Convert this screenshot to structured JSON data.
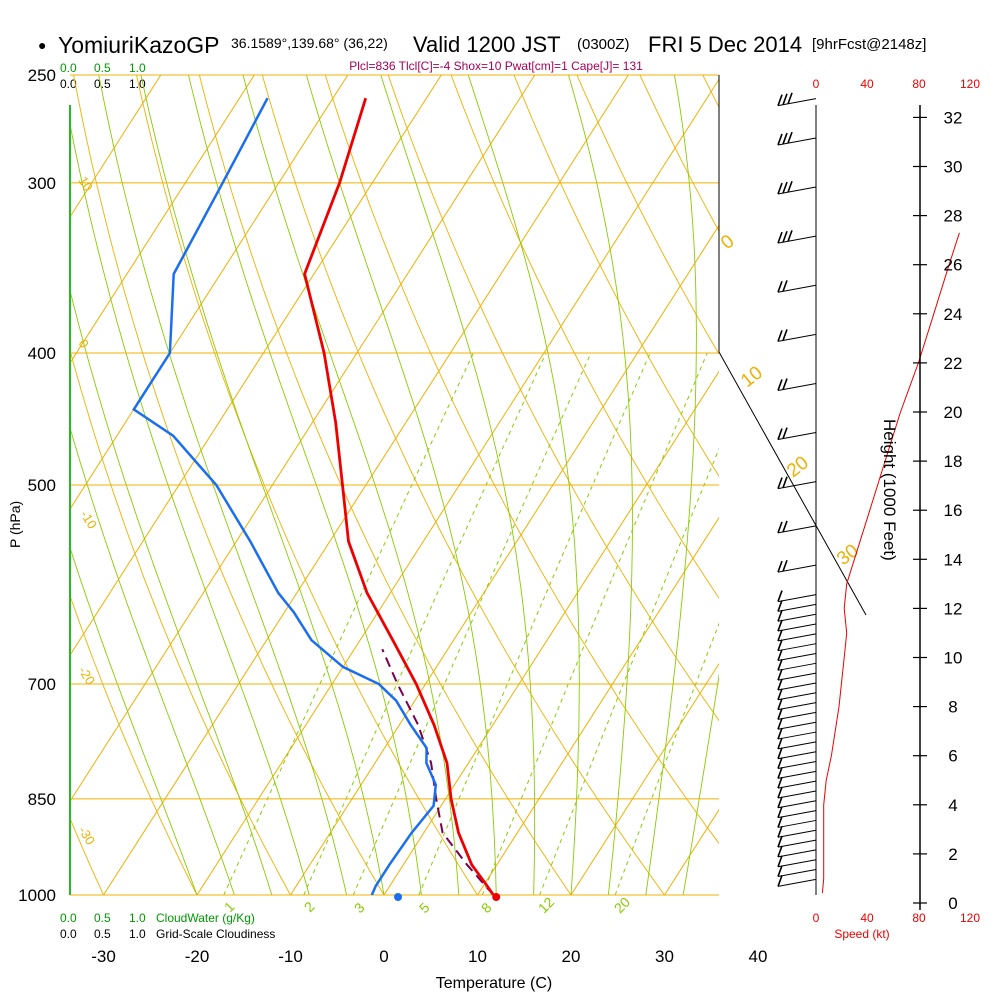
{
  "header": {
    "bullet": "●",
    "station": "YomiuriKazoGP",
    "location": "36.1589°,139.68° (36,22)",
    "valid_main": "Valid 1200 JST",
    "valid_utc": "(0300Z)",
    "date": "FRI 5 Dec 2014",
    "forecast": "[9hrFcst@2148z]",
    "indices": "Plcl=836 Tlcl[C]=-4 Shox=10 Pwat[cm]=1 Cape[J]= 131"
  },
  "colors": {
    "temperature": "#ee0000",
    "dewpoint": "#1a6ef0",
    "parcel": "#7a0050",
    "isotherm_isobar": "#f0b000",
    "moist_adiabat": "#88cc00",
    "mixing_ratio": "#88cc00",
    "cloud_water": "#009900",
    "wind_speed": "#ee0000",
    "indices_text": "#aa0055"
  },
  "top_scales": {
    "cloud_water": [
      "0.0",
      "0.5",
      "1.0"
    ],
    "cloudiness": [
      "0.0",
      "0.5",
      "1.0"
    ],
    "wind_speed": [
      "0",
      "40",
      "80",
      "120"
    ]
  },
  "bottom_scales": {
    "cloud_water": [
      "0.0",
      "0.5",
      "1.0"
    ],
    "cloud_water_label": "CloudWater (g/Kg)",
    "cloudiness": [
      "0.0",
      "0.5",
      "1.0"
    ],
    "cloudiness_label": "Grid-Scale Cloudiness",
    "wind_speed": [
      "0",
      "40",
      "80",
      "120"
    ],
    "wind_speed_label": "Speed (kt)"
  },
  "chart_data": {
    "type": "skew-t",
    "xlabel": "Temperature (C)",
    "ylabel": "P (hPa)",
    "right_label": "Height (1000 Feet)",
    "pressure_ticks": [
      250,
      300,
      400,
      500,
      700,
      850,
      1000
    ],
    "temperature_ticks": [
      -30,
      -20,
      -10,
      0,
      10,
      20,
      30,
      40
    ],
    "height_ticks_kft": [
      0,
      2,
      4,
      6,
      8,
      10,
      12,
      14,
      16,
      18,
      20,
      22,
      24,
      26,
      28,
      30,
      32
    ],
    "isotherm_labels": [
      "10",
      "0",
      "-10",
      "-20",
      "-30"
    ],
    "moist_adiabat_labels": [
      "0",
      "10",
      "20",
      "30"
    ],
    "mixing_ratio_labels": [
      "1",
      "2",
      "3",
      "5",
      "8",
      "12",
      "20"
    ],
    "temperature_profile": [
      {
        "p": 1000,
        "t": 11.7
      },
      {
        "p": 980,
        "t": 10.0
      },
      {
        "p": 950,
        "t": 7.3
      },
      {
        "p": 900,
        "t": 3.7
      },
      {
        "p": 850,
        "t": 0.6
      },
      {
        "p": 800,
        "t": -2.3
      },
      {
        "p": 750,
        "t": -6.3
      },
      {
        "p": 700,
        "t": -11.0
      },
      {
        "p": 650,
        "t": -16.5
      },
      {
        "p": 600,
        "t": -22.5
      },
      {
        "p": 550,
        "t": -28.0
      },
      {
        "p": 500,
        "t": -32.5
      },
      {
        "p": 450,
        "t": -37.5
      },
      {
        "p": 400,
        "t": -43.5
      },
      {
        "p": 350,
        "t": -51.0
      },
      {
        "p": 300,
        "t": -53.5
      },
      {
        "p": 260,
        "t": -56.5
      }
    ],
    "dewpoint_profile": [
      {
        "p": 1000,
        "t": -1.3
      },
      {
        "p": 985,
        "t": -1.5
      },
      {
        "p": 950,
        "t": -1.5
      },
      {
        "p": 900,
        "t": -1.3
      },
      {
        "p": 860,
        "t": -0.8
      },
      {
        "p": 830,
        "t": -2.0
      },
      {
        "p": 800,
        "t": -4.5
      },
      {
        "p": 780,
        "t": -5.5
      },
      {
        "p": 750,
        "t": -8.8
      },
      {
        "p": 720,
        "t": -12.0
      },
      {
        "p": 700,
        "t": -15.0
      },
      {
        "p": 680,
        "t": -20.0
      },
      {
        "p": 650,
        "t": -25.2
      },
      {
        "p": 620,
        "t": -29.0
      },
      {
        "p": 600,
        "t": -32.0
      },
      {
        "p": 550,
        "t": -38.5
      },
      {
        "p": 500,
        "t": -46.0
      },
      {
        "p": 460,
        "t": -54.0
      },
      {
        "p": 440,
        "t": -60.0
      },
      {
        "p": 400,
        "t": -60.0
      },
      {
        "p": 350,
        "t": -65.0
      },
      {
        "p": 300,
        "t": -66.0
      },
      {
        "p": 260,
        "t": -67.0
      }
    ],
    "parcel_profile": [
      {
        "p": 1000,
        "t": 11.7
      },
      {
        "p": 950,
        "t": 6.8
      },
      {
        "p": 900,
        "t": 2.0
      },
      {
        "p": 850,
        "t": -1.0
      },
      {
        "p": 800,
        "t": -4.0
      },
      {
        "p": 750,
        "t": -8.0
      },
      {
        "p": 700,
        "t": -13.0
      },
      {
        "p": 660,
        "t": -17.0
      }
    ],
    "surface_temperature": 12.0,
    "surface_dewpoint": 1.5,
    "wind_barb_levels_kft": [
      0.8,
      1.2,
      1.6,
      2.0,
      2.4,
      2.8,
      3.2,
      3.6,
      4.0,
      4.4,
      4.8,
      5.2,
      5.6,
      6.0,
      6.4,
      6.8,
      7.2,
      7.6,
      8.0,
      8.4,
      8.8,
      9.2,
      9.6,
      10.0,
      10.4,
      10.8,
      11.2,
      11.6,
      12.0,
      12.4,
      13.6,
      15.2,
      17.0,
      19.0,
      21.0,
      23.0,
      25.0,
      27.0,
      29.0,
      31.0,
      32.6
    ],
    "wind_speed_profile_kt": [
      {
        "h": 0.4,
        "v": 5
      },
      {
        "h": 1.0,
        "v": 6
      },
      {
        "h": 2.0,
        "v": 6
      },
      {
        "h": 4.0,
        "v": 6
      },
      {
        "h": 5.0,
        "v": 8
      },
      {
        "h": 6.0,
        "v": 12
      },
      {
        "h": 8.0,
        "v": 18
      },
      {
        "h": 10.0,
        "v": 22
      },
      {
        "h": 11.0,
        "v": 24
      },
      {
        "h": 12.0,
        "v": 22
      },
      {
        "h": 13.0,
        "v": 24
      },
      {
        "h": 14.0,
        "v": 30
      },
      {
        "h": 16.0,
        "v": 42
      },
      {
        "h": 18.0,
        "v": 54
      },
      {
        "h": 20.0,
        "v": 66
      },
      {
        "h": 22.0,
        "v": 80
      },
      {
        "h": 24.0,
        "v": 92
      },
      {
        "h": 26.0,
        "v": 104
      },
      {
        "h": 27.3,
        "v": 112
      }
    ]
  }
}
